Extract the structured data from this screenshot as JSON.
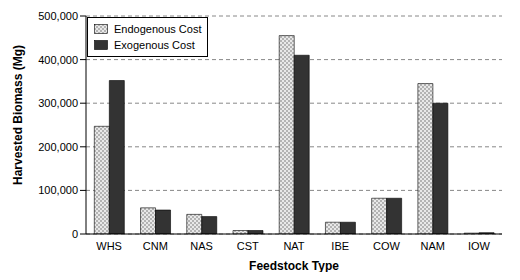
{
  "chart_data": {
    "type": "bar",
    "x_label": "Feedstock Type",
    "y_label": "Harvested Biomass (Mg)",
    "categories": [
      "WHS",
      "CNM",
      "NAS",
      "CST",
      "NAT",
      "IBE",
      "COW",
      "NAM",
      "IOW"
    ],
    "series": [
      {
        "name": "Endogenous Cost",
        "color": "#e8e8e8",
        "values": [
          247000,
          60000,
          45000,
          8000,
          455000,
          27000,
          82000,
          345000,
          2000
        ]
      },
      {
        "name": "Exogenous Cost",
        "color": "#333333",
        "values": [
          352000,
          55000,
          40000,
          8000,
          410000,
          27000,
          82000,
          300000,
          3000
        ]
      }
    ],
    "ylim": [
      0,
      500000
    ],
    "yticks": [
      0,
      {
        "value": 100000,
        "label": "100,000"
      },
      {
        "value": 200000,
        "label": "200,000"
      },
      {
        "value": 300000,
        "label": "300,000"
      },
      {
        "value": 400000,
        "label": "400,000"
      },
      {
        "value": 500000,
        "label": "500,000"
      }
    ],
    "grid": true,
    "legend": "top-left"
  }
}
